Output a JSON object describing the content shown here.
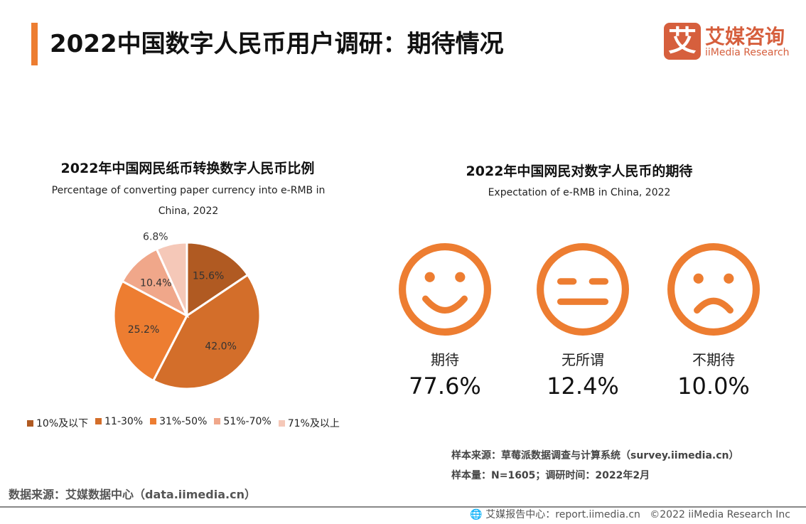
{
  "header": {
    "title": "2022中国数字人民币用户调研：期待情况",
    "logo_text": "艾媒咨询",
    "logo_sub": "iiMedia Research",
    "logo_glyph": "艾",
    "accent": "#ED7D31"
  },
  "chart_data": [
    {
      "type": "pie",
      "title": "2022年中国网民纸币转换数字人民币比例",
      "subtitle": "Percentage of converting paper currency into e-RMB in China, 2022",
      "categories": [
        "10%及以下",
        "11-30%",
        "31%-50%",
        "51%-70%",
        "71%及以上"
      ],
      "values": [
        15.6,
        42.0,
        25.2,
        10.4,
        6.8
      ],
      "labels": [
        "15.6%",
        "42.0%",
        "25.2%",
        "10.4%",
        "6.8%"
      ],
      "colors": [
        "#B05A22",
        "#D36E2A",
        "#ED7D31",
        "#F0A78A",
        "#F5C8B8"
      ],
      "legend": "bottom"
    },
    {
      "type": "table",
      "title": "2022年中国网民对数字人民币的期待",
      "subtitle": "Expectation of e-RMB in China, 2022",
      "items": [
        {
          "label": "期待",
          "value": "77.6%",
          "icon": "smile-face-icon"
        },
        {
          "label": "无所谓",
          "value": "12.4%",
          "icon": "neutral-face-icon"
        },
        {
          "label": "不期待",
          "value": "10.0%",
          "icon": "sad-face-icon"
        }
      ],
      "color": "#ED7D31"
    }
  ],
  "notes": {
    "sample_source": "样本来源：草莓派数据调查与计算系统（survey.iimedia.cn）",
    "sample_size": "样本量：N=1605；调研时间：2022年2月",
    "data_source": "数据来源：艾媒数据中心（data.iimedia.cn）"
  },
  "footer": {
    "text": "艾媒报告中心：report.iimedia.cn   ©2022 iiMedia Research Inc"
  }
}
